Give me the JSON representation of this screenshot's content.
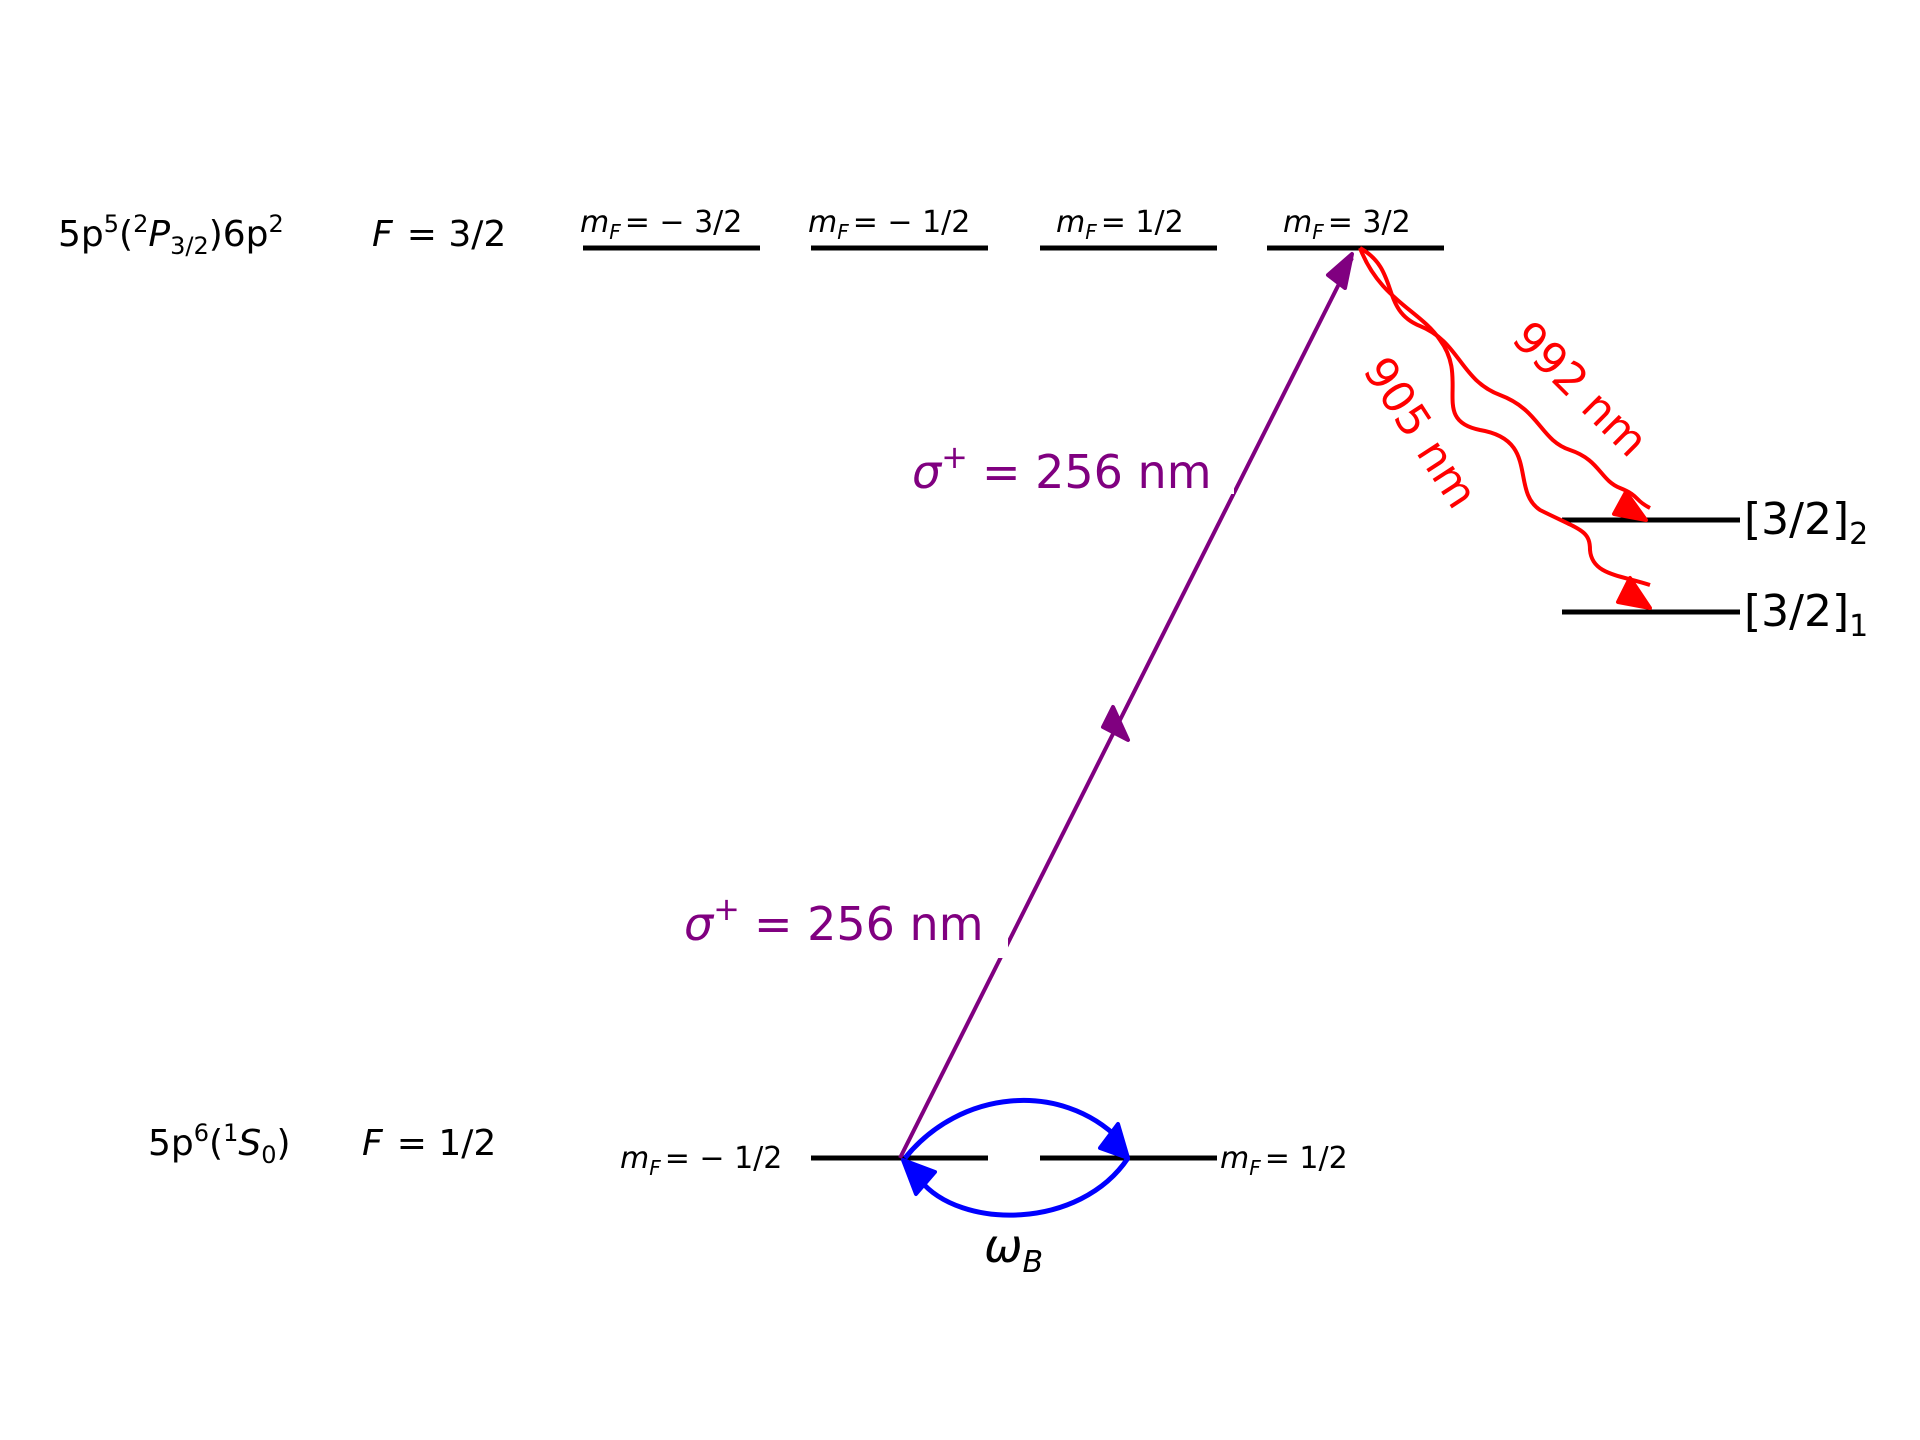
{
  "excited_state": {
    "config": {
      "base": "5p",
      "sup": "5",
      "p2": "(",
      "sup2": "2",
      "P": "P",
      "psub": "3/2",
      "close": ")6p",
      "sup3": "2"
    },
    "F_label": "F",
    "F_value": "= 3/2",
    "sublevels": [
      {
        "m": "m",
        "sub": "F",
        "value": "= − 3/2"
      },
      {
        "m": "m",
        "sub": "F",
        "value": "= − 1/2"
      },
      {
        "m": "m",
        "sub": "F",
        "value": "= 1/2"
      },
      {
        "m": "m",
        "sub": "F",
        "value": "= 3/2"
      }
    ]
  },
  "ground_state": {
    "config": {
      "base": "5p",
      "sup": "6",
      "open": "(",
      "sup2": "1",
      "S": "S",
      "ssub": "0",
      "close": ")"
    },
    "F_label": "F",
    "F_value": "= 1/2",
    "sublevels": [
      {
        "m": "m",
        "sub": "F",
        "value": "= − 1/2"
      },
      {
        "m": "m",
        "sub": "F",
        "value": "= 1/2"
      }
    ]
  },
  "lower_states": [
    {
      "bracket": "[3/2]",
      "sub": "2"
    },
    {
      "bracket": "[3/2]",
      "sub": "1"
    }
  ],
  "transitions": {
    "pump_label_upper": {
      "sigma": "σ",
      "sup": "+",
      "rest": "= 256 nm"
    },
    "pump_label_lower": {
      "sigma": "σ",
      "sup": "+",
      "rest": "= 256 nm"
    },
    "decay_992": "992 nm",
    "decay_905": "905 nm",
    "larmor": {
      "omega": "ω",
      "sub": "B"
    }
  },
  "colors": {
    "levels": "#000000",
    "pump": "#800080",
    "decay": "#ff0000",
    "larmor": "#0000ff"
  }
}
